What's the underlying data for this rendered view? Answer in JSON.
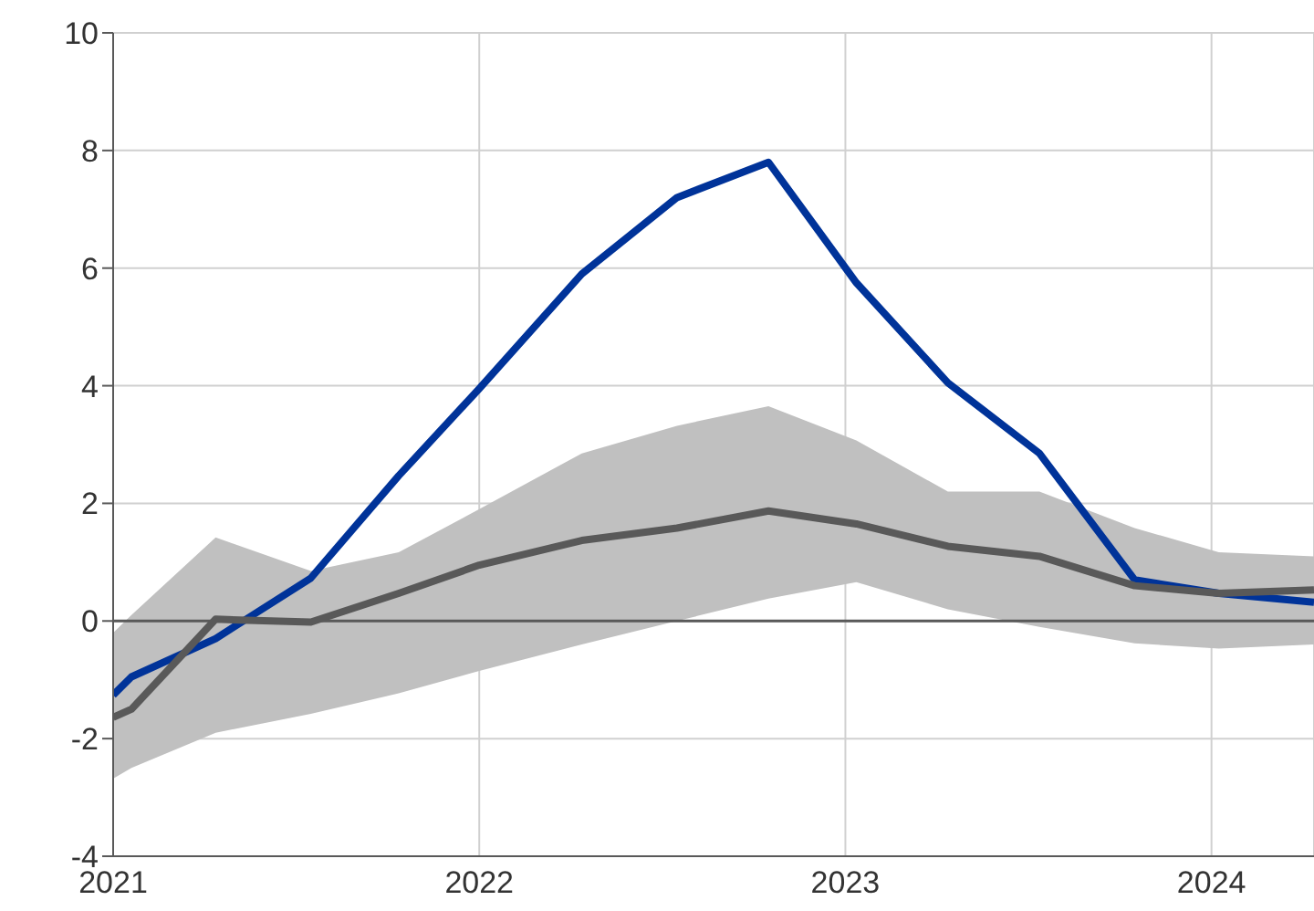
{
  "chart_data": {
    "type": "line",
    "x": [
      2021.0,
      2021.05,
      2021.28,
      2021.54,
      2021.78,
      2022.0,
      2022.28,
      2022.54,
      2022.79,
      2023.03,
      2023.28,
      2023.53,
      2023.79,
      2024.02,
      2024.28
    ],
    "series": [
      {
        "color": "#003399",
        "values": [
          -1.26,
          -0.95,
          -0.3,
          0.73,
          2.47,
          3.95,
          5.9,
          7.2,
          7.8,
          5.75,
          4.05,
          2.85,
          0.7,
          0.47,
          0.32
        ]
      },
      {
        "color": "#595959",
        "values": [
          -1.64,
          -1.5,
          0.03,
          -0.02,
          0.47,
          0.95,
          1.37,
          1.58,
          1.87,
          1.65,
          1.27,
          1.1,
          0.6,
          0.47,
          0.53
        ],
        "lower": [
          -2.68,
          -2.5,
          -1.9,
          -1.58,
          -1.23,
          -0.85,
          -0.4,
          0.0,
          0.38,
          0.66,
          0.2,
          -0.1,
          -0.38,
          -0.47,
          -0.4
        ],
        "upper": [
          -0.2,
          0.1,
          1.42,
          0.85,
          1.17,
          1.9,
          2.85,
          3.32,
          3.65,
          3.07,
          2.2,
          2.2,
          1.58,
          1.17,
          1.1
        ]
      }
    ],
    "xlim": [
      2021,
      2024.28
    ],
    "xticks": [
      2021,
      2022,
      2023,
      2024
    ],
    "ylim": [
      -4,
      10
    ],
    "yticks": [
      -4,
      -2,
      0,
      2,
      4,
      6,
      8,
      10
    ],
    "grid": true,
    "legend": false,
    "marker": "none",
    "line_style": "solid",
    "ref_lines": [
      {
        "axis": "y",
        "value": 0,
        "color": "#595959"
      }
    ]
  }
}
